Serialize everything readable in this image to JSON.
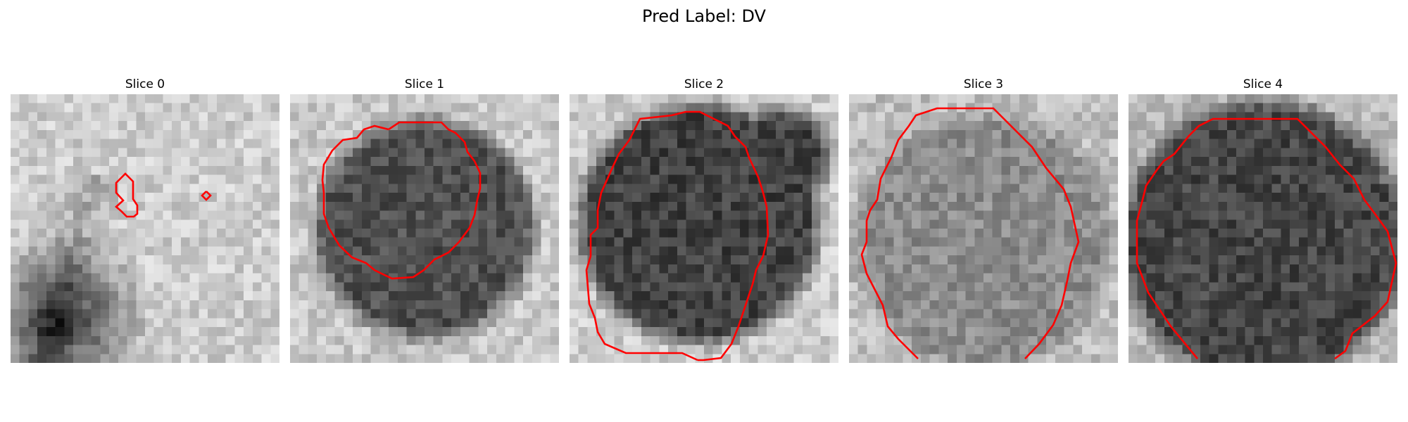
{
  "figure": {
    "suptitle": "Pred Label: DV"
  },
  "panels": [
    {
      "title": "Slice 0"
    },
    {
      "title": "Slice 1"
    },
    {
      "title": "Slice 2"
    },
    {
      "title": "Slice 3"
    },
    {
      "title": "Slice 4"
    }
  ],
  "contour_color": "#ff0000"
}
